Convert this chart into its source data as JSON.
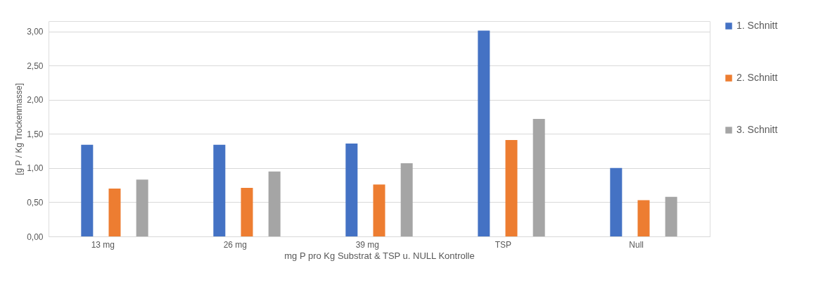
{
  "chart_data": {
    "type": "bar",
    "xlabel": "mg P pro Kg Substrat & TSP u. NULL Kontrolle",
    "ylabel": "[g P / Kg Trockenmasse]",
    "categories": [
      "13 mg",
      "26 mg",
      "39 mg",
      "TSP",
      "Null"
    ],
    "series": [
      {
        "name": "1. Schnitt",
        "color": "#4472c4",
        "values": [
          1.34,
          1.34,
          1.36,
          3.01,
          1.0
        ]
      },
      {
        "name": "2. Schnitt",
        "color": "#ed7d31",
        "values": [
          0.7,
          0.71,
          0.76,
          1.41,
          0.53
        ]
      },
      {
        "name": "3. Schnitt",
        "color": "#a5a5a5",
        "values": [
          0.83,
          0.95,
          1.07,
          1.72,
          0.58
        ]
      }
    ],
    "ylim": [
      0,
      3.15
    ],
    "yticks": [
      {
        "value": 0,
        "label": "0,00"
      },
      {
        "value": 0.5,
        "label": "0,50"
      },
      {
        "value": 1,
        "label": "1,00"
      },
      {
        "value": 1.5,
        "label": "1,50"
      },
      {
        "value": 2,
        "label": "2,00"
      },
      {
        "value": 2.5,
        "label": "2,50"
      },
      {
        "value": 3,
        "label": "3,00"
      }
    ],
    "grid": "y",
    "legend": "right"
  }
}
